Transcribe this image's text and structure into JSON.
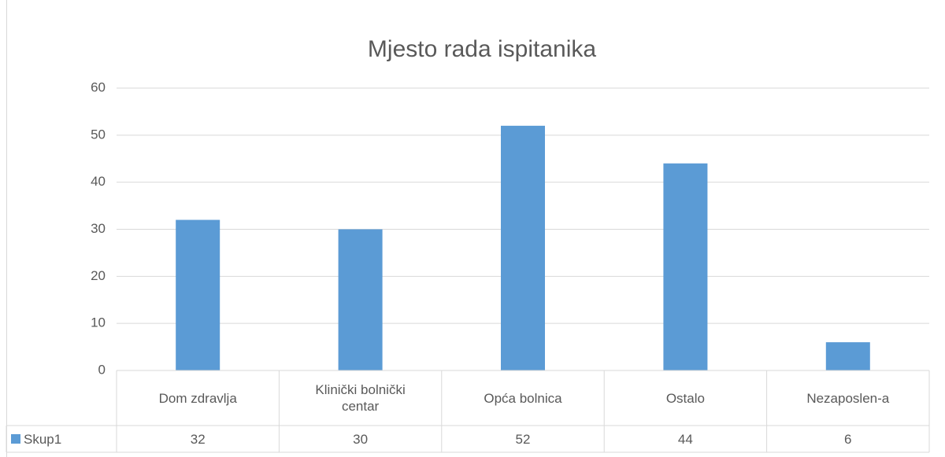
{
  "chart_data": {
    "type": "bar",
    "title": "Mjesto rada ispitanika",
    "categories": [
      "Dom zdravlja",
      "Klinički bolnički centar",
      "Opća bolnica",
      "Ostalo",
      "Nezaposlen-a"
    ],
    "series": [
      {
        "name": "Skup1",
        "color": "#5b9bd5",
        "values": [
          32,
          30,
          52,
          44,
          6
        ]
      }
    ],
    "ylim": [
      0,
      60
    ],
    "yticks": [
      0,
      10,
      20,
      30,
      40,
      50,
      60
    ],
    "grid": true,
    "data_table": true
  }
}
